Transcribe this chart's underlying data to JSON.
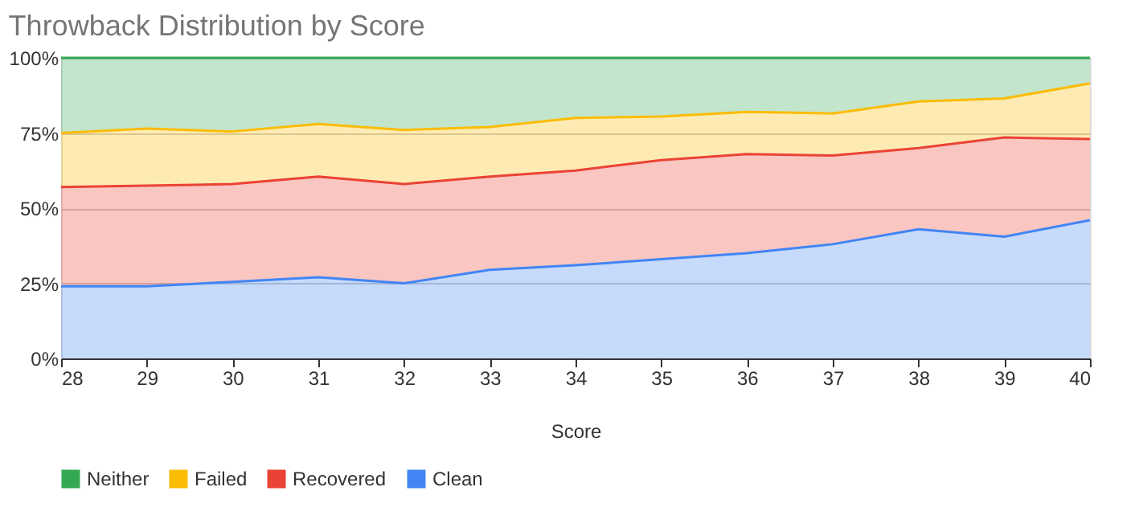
{
  "chart_data": {
    "type": "area",
    "title": "Throwback Distribution by Score",
    "xlabel": "Score",
    "stacked": true,
    "x": [
      28,
      29,
      30,
      31,
      32,
      33,
      34,
      35,
      36,
      37,
      38,
      39,
      40
    ],
    "xlim": [
      28,
      40
    ],
    "xticks": [
      28,
      29,
      30,
      31,
      32,
      33,
      34,
      35,
      36,
      37,
      38,
      39,
      40
    ],
    "ylim": [
      0,
      100
    ],
    "yticks": [
      {
        "value": 0,
        "label": "0%"
      },
      {
        "value": 25,
        "label": "25%"
      },
      {
        "value": 50,
        "label": "50%"
      },
      {
        "value": 75,
        "label": "75%"
      },
      {
        "value": 100,
        "label": "100%"
      }
    ],
    "grid": "y",
    "legend": "bottom",
    "series": [
      {
        "name": "Clean",
        "color": "#4285f4",
        "values": [
          24,
          24,
          25.5,
          27,
          25,
          29.5,
          31,
          33,
          35,
          38,
          43,
          40.5,
          46
        ]
      },
      {
        "name": "Recovered",
        "color": "#ea4335",
        "values": [
          33,
          33.5,
          32.5,
          33.5,
          33,
          31,
          31.5,
          33,
          33,
          29.5,
          27,
          33,
          27
        ]
      },
      {
        "name": "Failed",
        "color": "#fbbc04",
        "values": [
          18,
          19,
          17.5,
          17.5,
          18,
          16.5,
          17.5,
          14.5,
          14,
          14,
          15.5,
          13,
          18.5
        ]
      },
      {
        "name": "Neither",
        "color": "#34a853",
        "values": [
          25,
          23.5,
          24.5,
          22,
          24,
          23,
          20,
          19.5,
          18,
          18.5,
          14.5,
          13.5,
          8.5
        ]
      }
    ]
  }
}
